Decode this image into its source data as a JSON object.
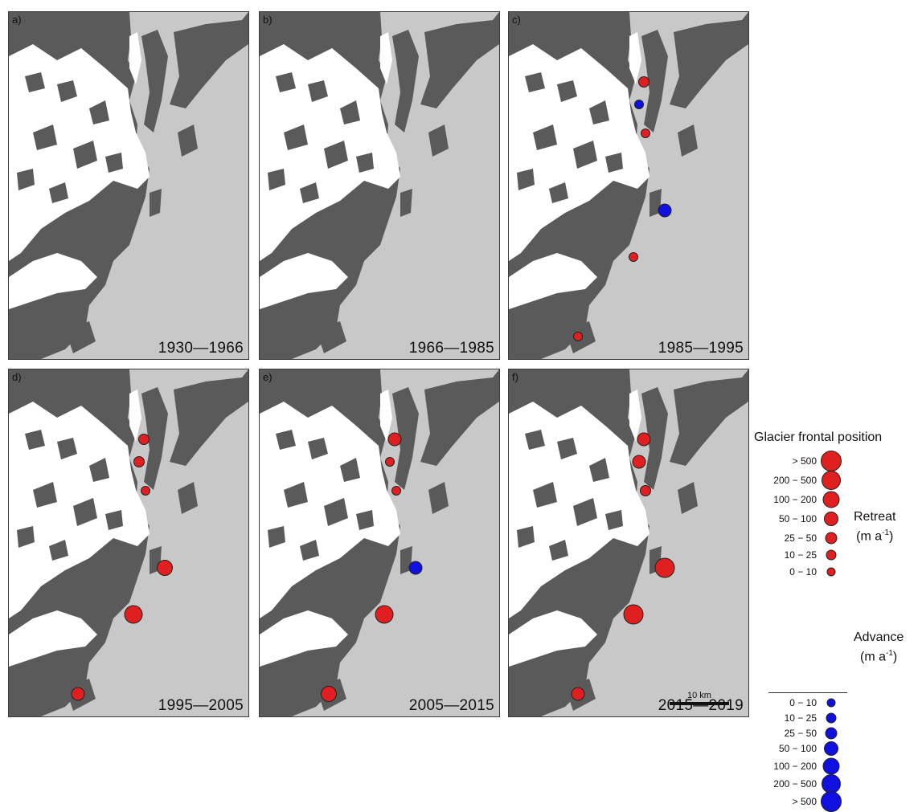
{
  "colors": {
    "sea": "#c8c8c8",
    "rock": "#5a5a5a",
    "ice": "#ffffff",
    "retreat": "#e02020",
    "advance": "#1010e0"
  },
  "panels": [
    {
      "letter": "a)",
      "period": "1930—1966",
      "markers": []
    },
    {
      "letter": "b)",
      "period": "1966—1985",
      "markers": []
    },
    {
      "letter": "c)",
      "period": "1985—1995",
      "markers": [
        {
          "site": 1,
          "type": "retreat",
          "class": "25 − 50"
        },
        {
          "site": 2,
          "type": "advance",
          "class": "10 − 25"
        },
        {
          "site": 3,
          "type": "retreat",
          "class": "10 − 25"
        },
        {
          "site": 4,
          "type": "advance",
          "class": "50 − 100"
        },
        {
          "site": 5,
          "type": "retreat",
          "class": "10 − 25"
        },
        {
          "site": 6,
          "type": "retreat",
          "class": "10 − 25"
        }
      ]
    },
    {
      "letter": "d)",
      "period": "1995—2005",
      "markers": [
        {
          "site": 1,
          "type": "retreat",
          "class": "25 − 50"
        },
        {
          "site": 2,
          "type": "retreat",
          "class": "25 − 50"
        },
        {
          "site": 3,
          "type": "retreat",
          "class": "10 − 25"
        },
        {
          "site": 4,
          "type": "retreat",
          "class": "100 − 200"
        },
        {
          "site": 5,
          "type": "retreat",
          "class": "200 − 500"
        },
        {
          "site": 6,
          "type": "retreat",
          "class": "50 − 100"
        }
      ]
    },
    {
      "letter": "e)",
      "period": "2005—2015",
      "markers": [
        {
          "site": 1,
          "type": "retreat",
          "class": "50 − 100"
        },
        {
          "site": 2,
          "type": "retreat",
          "class": "10 − 25"
        },
        {
          "site": 3,
          "type": "retreat",
          "class": "10 − 25"
        },
        {
          "site": 4,
          "type": "advance",
          "class": "50 − 100"
        },
        {
          "site": 5,
          "type": "retreat",
          "class": "200 − 500"
        },
        {
          "site": 6,
          "type": "retreat",
          "class": "100 − 200"
        }
      ]
    },
    {
      "letter": "f)",
      "period": "2015—2019",
      "markers": [
        {
          "site": 1,
          "type": "retreat",
          "class": "50 − 100"
        },
        {
          "site": 2,
          "type": "retreat",
          "class": "50 − 100"
        },
        {
          "site": 3,
          "type": "retreat",
          "class": "25 − 50"
        },
        {
          "site": 4,
          "type": "retreat",
          "class": "> 500"
        },
        {
          "site": 5,
          "type": "retreat",
          "class": "> 500"
        },
        {
          "site": 6,
          "type": "retreat",
          "class": "50 − 100"
        }
      ]
    }
  ],
  "scalebar": {
    "label": "10 km"
  },
  "legend": {
    "title": "Glacier frontal position",
    "retreat": {
      "label": "Retreat",
      "unit": "(m a",
      "unit_sup": "-1",
      "unit_close": ")",
      "classes": [
        "> 500",
        "200 − 500",
        "100 − 200",
        "50 − 100",
        "25 − 50",
        "10 − 25",
        "0 − 10"
      ]
    },
    "advance": {
      "label": "Advance",
      "unit": "(m a",
      "unit_sup": "-1",
      "unit_close": ")",
      "classes": [
        "0 − 10",
        "10 − 25",
        "25 − 50",
        "50 − 100",
        "100 − 200",
        "200 − 500",
        "> 500"
      ]
    }
  }
}
